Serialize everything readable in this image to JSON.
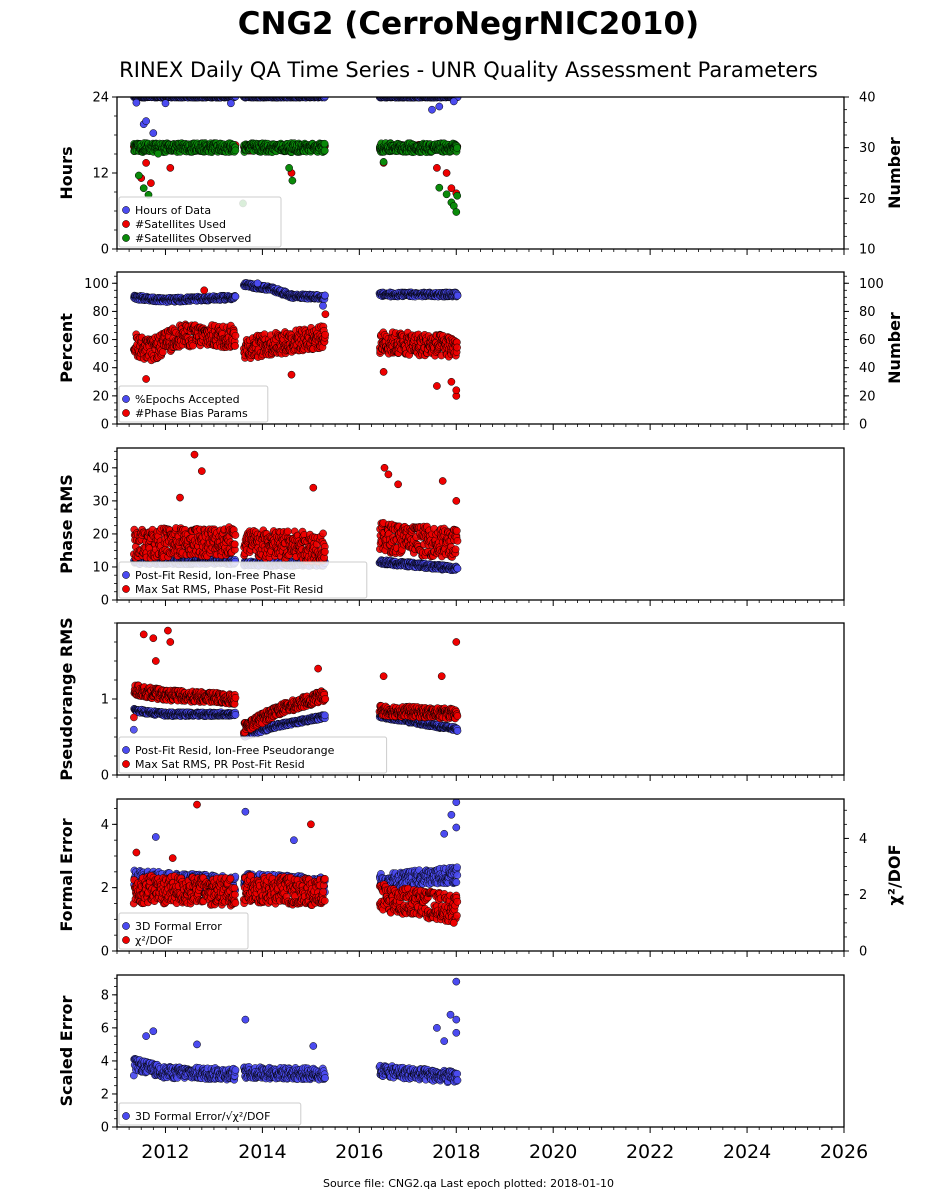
{
  "title": "CNG2 (CerroNegrNIC2010)",
  "subtitle": "RINEX Daily QA Time Series - UNR Quality Assessment Parameters",
  "footer": "Source file: CNG2.qa Last epoch plotted: 2018-01-10",
  "colors": {
    "blue": "#4b4bf0",
    "red": "#ee0000",
    "green": "#0a8a0a"
  },
  "chart_data": [
    {
      "type": "scatter",
      "ylabel": "Hours",
      "ylabel_right": "Number",
      "xlim": [
        2011.0,
        2026.0
      ],
      "ylim": [
        0,
        24
      ],
      "ylim_right": [
        10,
        40
      ],
      "yticks": [
        0,
        12,
        24
      ],
      "yticks_right": [
        10,
        20,
        30,
        40
      ],
      "legend": [
        "Hours of Data",
        "#Satellites Used",
        "#Satellites Observed"
      ],
      "segments": [
        [
          2011.35,
          2013.45
        ],
        [
          2013.62,
          2015.3
        ],
        [
          2016.42,
          2018.03
        ]
      ],
      "series": [
        {
          "name": "Hours of Data",
          "color": "blue",
          "axis": "left",
          "level": 24.0,
          "spread": 0.1,
          "outliers": [
            [
              2011.4,
              23.1
            ],
            [
              2011.55,
              19.7
            ],
            [
              2011.6,
              20.2
            ],
            [
              2011.75,
              18.3
            ],
            [
              2012.0,
              23.0
            ],
            [
              2013.35,
              23.0
            ],
            [
              2017.5,
              22.0
            ],
            [
              2017.65,
              22.5
            ],
            [
              2017.95,
              23.3
            ]
          ]
        },
        {
          "name": "#Satellites Used",
          "color": "red",
          "axis": "right",
          "level": 30.0,
          "spread": 0.6,
          "outliers": [
            [
              2011.5,
              24
            ],
            [
              2011.6,
              27
            ],
            [
              2011.7,
              23
            ],
            [
              2012.1,
              26
            ],
            [
              2014.6,
              25
            ],
            [
              2016.5,
              27
            ],
            [
              2017.6,
              26
            ],
            [
              2017.8,
              25
            ],
            [
              2017.9,
              22
            ],
            [
              2018.0,
              21
            ]
          ]
        },
        {
          "name": "#Satellites Observed",
          "color": "green",
          "axis": "right",
          "level": 30.0,
          "spread": 0.9,
          "outliers": [
            [
              2011.45,
              24.5
            ],
            [
              2011.55,
              22
            ],
            [
              2011.65,
              20.7
            ],
            [
              2011.85,
              28.8
            ],
            [
              2013.6,
              19.0
            ],
            [
              2014.55,
              26
            ],
            [
              2014.62,
              23.5
            ],
            [
              2016.5,
              27.2
            ],
            [
              2017.65,
              22.1
            ],
            [
              2017.8,
              20.8
            ],
            [
              2017.9,
              19.2
            ],
            [
              2017.95,
              18.5
            ],
            [
              2018.0,
              17.3
            ],
            [
              2018.02,
              20.5
            ]
          ]
        }
      ]
    },
    {
      "type": "scatter",
      "ylabel": "Percent",
      "ylabel_right": "Number",
      "xlim": [
        2011.0,
        2026.0
      ],
      "ylim": [
        0,
        108
      ],
      "ylim_right": [
        0,
        108
      ],
      "yticks": [
        0,
        20,
        40,
        60,
        80,
        100
      ],
      "yticks_right": [
        0,
        20,
        40,
        60,
        80,
        100
      ],
      "legend": [
        "%Epochs Accepted",
        "#Phase Bias Params"
      ],
      "segments": [
        [
          2011.35,
          2013.45
        ],
        [
          2013.62,
          2015.3
        ],
        [
          2016.42,
          2018.03
        ]
      ],
      "series": [
        {
          "name": "%Epochs Accepted",
          "color": "blue",
          "axis": "left",
          "trend": [
            [
              2011.35,
              90
            ],
            [
              2012.0,
              88
            ],
            [
              2013.45,
              90
            ],
            [
              2013.62,
              99
            ],
            [
              2014.2,
              96
            ],
            [
              2014.6,
              91
            ],
            [
              2015.3,
              90
            ],
            [
              2016.42,
              92
            ],
            [
              2018.03,
              92
            ]
          ],
          "spread": 1.5,
          "outliers": [
            [
              2015.25,
              84
            ],
            [
              2013.9,
              100
            ]
          ]
        },
        {
          "name": "#Phase Bias Params",
          "color": "red",
          "axis": "right",
          "trend": [
            [
              2011.35,
              57
            ],
            [
              2011.7,
              52
            ],
            [
              2012.3,
              63
            ],
            [
              2013.45,
              62
            ],
            [
              2013.62,
              54
            ],
            [
              2015.3,
              62
            ],
            [
              2016.42,
              58
            ],
            [
              2018.03,
              55
            ]
          ],
          "spread": 8,
          "outliers": [
            [
              2011.6,
              32
            ],
            [
              2012.8,
              95
            ],
            [
              2014.6,
              35
            ],
            [
              2015.3,
              78
            ],
            [
              2016.5,
              37
            ],
            [
              2017.6,
              27
            ],
            [
              2017.9,
              30
            ],
            [
              2018.0,
              20
            ],
            [
              2018.0,
              24
            ]
          ]
        }
      ]
    },
    {
      "type": "scatter",
      "ylabel": "Phase RMS",
      "xlim": [
        2011.0,
        2026.0
      ],
      "ylim": [
        0,
        46
      ],
      "yticks": [
        0,
        10,
        20,
        30,
        40
      ],
      "legend": [
        "Post-Fit Resid, Ion-Free Phase",
        "Max Sat RMS, Phase Post-Fit Resid"
      ],
      "segments": [
        [
          2011.35,
          2013.45
        ],
        [
          2013.62,
          2015.3
        ],
        [
          2016.42,
          2018.03
        ]
      ],
      "series": [
        {
          "name": "Post-Fit Resid, Ion-Free Phase",
          "color": "blue",
          "axis": "left",
          "trend": [
            [
              2011.35,
              11.5
            ],
            [
              2013.45,
              11.5
            ],
            [
              2013.62,
              11.0
            ],
            [
              2015.3,
              11.0
            ],
            [
              2016.42,
              11.5
            ],
            [
              2018.03,
              9.5
            ]
          ],
          "spread": 0.7,
          "outliers": []
        },
        {
          "name": "Max Sat RMS, Phase Post-Fit Resid",
          "color": "red",
          "axis": "left",
          "trend": [
            [
              2011.35,
              17
            ],
            [
              2013.45,
              18
            ],
            [
              2013.62,
              17
            ],
            [
              2015.3,
              16
            ],
            [
              2016.42,
              19
            ],
            [
              2018.03,
              17
            ]
          ],
          "spread": 4.5,
          "outliers": [
            [
              2012.6,
              44
            ],
            [
              2012.75,
              39
            ],
            [
              2012.3,
              31
            ],
            [
              2015.05,
              34
            ],
            [
              2016.52,
              40
            ],
            [
              2016.6,
              38
            ],
            [
              2016.8,
              35
            ],
            [
              2017.72,
              36
            ],
            [
              2018.0,
              30
            ]
          ]
        }
      ]
    },
    {
      "type": "scatter",
      "ylabel": "Pseudorange RMS",
      "xlim": [
        2011.0,
        2026.0
      ],
      "ylim": [
        0,
        2.0
      ],
      "yticks": [
        0,
        1
      ],
      "legend": [
        "Post-Fit Resid, Ion-Free Pseudorange",
        "Max Sat RMS, PR Post-Fit Resid"
      ],
      "segments": [
        [
          2011.35,
          2013.45
        ],
        [
          2013.62,
          2015.3
        ],
        [
          2016.42,
          2018.03
        ]
      ],
      "series": [
        {
          "name": "Post-Fit Resid, Ion-Free Pseudorange",
          "color": "blue",
          "axis": "left",
          "trend": [
            [
              2011.35,
              0.85
            ],
            [
              2012.0,
              0.8
            ],
            [
              2013.45,
              0.8
            ],
            [
              2013.62,
              0.52
            ],
            [
              2014.3,
              0.65
            ],
            [
              2015.3,
              0.77
            ],
            [
              2016.42,
              0.78
            ],
            [
              2018.03,
              0.6
            ]
          ],
          "spread": 0.025,
          "outliers": []
        },
        {
          "name": "Max Sat RMS, PR Post-Fit Resid",
          "color": "red",
          "axis": "left",
          "trend": [
            [
              2011.35,
              1.12
            ],
            [
              2012.0,
              1.05
            ],
            [
              2013.45,
              1.0
            ],
            [
              2013.62,
              0.62
            ],
            [
              2014.3,
              0.85
            ],
            [
              2015.3,
              1.05
            ],
            [
              2016.42,
              0.85
            ],
            [
              2018.03,
              0.8
            ]
          ],
          "spread": 0.07,
          "outliers": [
            [
              2011.55,
              1.85
            ],
            [
              2011.75,
              1.8
            ],
            [
              2012.05,
              1.9
            ],
            [
              2012.1,
              1.75
            ],
            [
              2011.8,
              1.5
            ],
            [
              2015.15,
              1.4
            ],
            [
              2016.5,
              1.3
            ],
            [
              2017.7,
              1.3
            ],
            [
              2018.0,
              1.75
            ]
          ]
        }
      ]
    },
    {
      "type": "scatter",
      "ylabel": "Formal Error",
      "ylabel_right": "χ²/DOF",
      "xlim": [
        2011.0,
        2026.0
      ],
      "ylim": [
        0,
        4.8
      ],
      "ylim_right": [
        0,
        5.4
      ],
      "yticks": [
        0,
        2,
        4
      ],
      "yticks_right": [
        0,
        2,
        4
      ],
      "legend": [
        "3D Formal Error",
        "χ²/DOF"
      ],
      "segments": [
        [
          2011.35,
          2013.45
        ],
        [
          2013.62,
          2015.3
        ],
        [
          2016.42,
          2018.03
        ]
      ],
      "series": [
        {
          "name": "3D Formal Error",
          "color": "blue",
          "axis": "left",
          "trend": [
            [
              2011.35,
              2.3
            ],
            [
              2013.45,
              2.1
            ],
            [
              2013.62,
              2.2
            ],
            [
              2015.3,
              2.1
            ],
            [
              2016.42,
              2.2
            ],
            [
              2018.03,
              2.4
            ]
          ],
          "spread": 0.25,
          "outliers": [
            [
              2011.8,
              3.6
            ],
            [
              2013.65,
              4.4
            ],
            [
              2014.65,
              3.5
            ],
            [
              2017.9,
              4.3
            ],
            [
              2018.0,
              4.7
            ],
            [
              2018.0,
              3.9
            ],
            [
              2017.75,
              3.7
            ]
          ]
        },
        {
          "name": "χ²/DOF",
          "color": "red",
          "axis": "right",
          "trend": [
            [
              2011.35,
              2.2
            ],
            [
              2013.45,
              2.1
            ],
            [
              2013.62,
              2.2
            ],
            [
              2015.3,
              2.1
            ],
            [
              2016.42,
              1.9
            ],
            [
              2018.03,
              1.5
            ]
          ],
          "spread": 0.5,
          "outliers": [
            [
              2012.65,
              5.2
            ],
            [
              2015.0,
              4.5
            ],
            [
              2011.4,
              3.5
            ],
            [
              2012.15,
              3.3
            ],
            [
              2017.95,
              1.0
            ]
          ]
        }
      ]
    },
    {
      "type": "scatter",
      "ylabel": "Scaled Error",
      "xlim": [
        2011.0,
        2026.0
      ],
      "ylim": [
        0,
        9.2
      ],
      "yticks": [
        0,
        2,
        4,
        6,
        8
      ],
      "legend": [
        "3D Formal Error/√χ²/DOF"
      ],
      "segments": [
        [
          2011.35,
          2013.45
        ],
        [
          2013.62,
          2015.3
        ],
        [
          2016.42,
          2018.03
        ]
      ],
      "series": [
        {
          "name": "3D Formal Error/√χ²/DOF",
          "color": "blue",
          "axis": "left",
          "trend": [
            [
              2011.35,
              3.8
            ],
            [
              2012.0,
              3.3
            ],
            [
              2013.45,
              3.2
            ],
            [
              2013.62,
              3.3
            ],
            [
              2015.3,
              3.2
            ],
            [
              2016.42,
              3.4
            ],
            [
              2018.03,
              3.0
            ]
          ],
          "spread": 0.35,
          "outliers": [
            [
              2011.6,
              5.5
            ],
            [
              2011.75,
              5.8
            ],
            [
              2012.65,
              5.0
            ],
            [
              2013.65,
              6.5
            ],
            [
              2015.05,
              4.9
            ],
            [
              2017.6,
              6.0
            ],
            [
              2017.75,
              5.2
            ],
            [
              2017.88,
              6.8
            ],
            [
              2018.0,
              8.8
            ],
            [
              2018.0,
              6.5
            ],
            [
              2018.0,
              5.7
            ]
          ]
        }
      ]
    }
  ],
  "x_axis": {
    "ticks": [
      2012,
      2014,
      2016,
      2018,
      2020,
      2022,
      2024,
      2026
    ],
    "tick_labels": [
      "2012",
      "2014",
      "2016",
      "2018",
      "2020",
      "2022",
      "2024",
      "2026"
    ]
  }
}
